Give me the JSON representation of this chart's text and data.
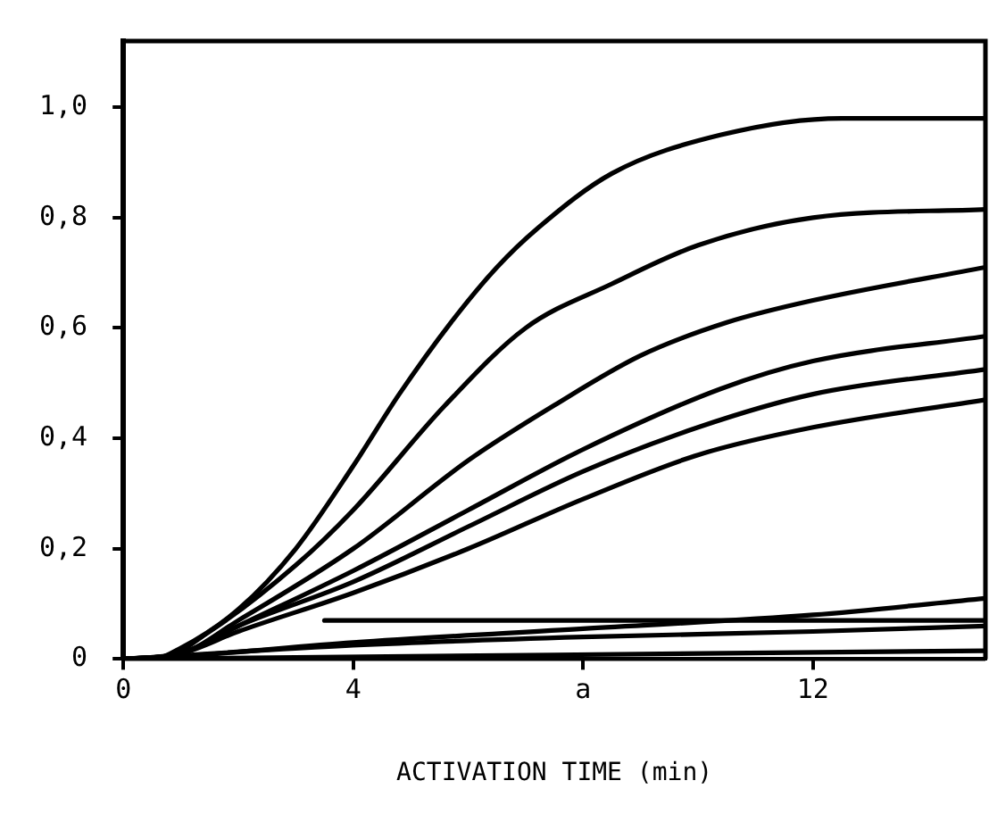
{
  "chart_data": {
    "type": "line",
    "xlabel": "ACTIVATION TIME (min)",
    "xlim": [
      0,
      15
    ],
    "ylim": [
      0,
      1.12
    ],
    "xticks": [
      0,
      4,
      {
        "value": 8,
        "label": "a"
      },
      12
    ],
    "yticks": [
      0,
      {
        "value": 0.2,
        "label": "0,2"
      },
      {
        "value": 0.4,
        "label": "0,4"
      },
      {
        "value": 0.6,
        "label": "0,6"
      },
      {
        "value": 0.8,
        "label": "0,8"
      },
      {
        "value": 1,
        "label": "1,0"
      }
    ],
    "grid": false,
    "legend": false,
    "marker": "none",
    "line_style": "solid",
    "series": [
      {
        "color": "#000000",
        "x": [
          0,
          0.5,
          1,
          2,
          3,
          4,
          4.8,
          5.7,
          6.5,
          7.2,
          8.5,
          10.4,
          12.5,
          15
        ],
        "values": [
          0,
          0,
          0.02,
          0.09,
          0.2,
          0.35,
          0.48,
          0.61,
          0.71,
          0.78,
          0.88,
          0.95,
          0.98,
          0.98
        ]
      },
      {
        "color": "#000000",
        "x": [
          0,
          0.6,
          1.5,
          3,
          4,
          5.6,
          7,
          8.5,
          10,
          12,
          15
        ],
        "values": [
          0,
          0,
          0.05,
          0.17,
          0.27,
          0.46,
          0.6,
          0.68,
          0.75,
          0.8,
          0.815
        ]
      },
      {
        "color": "#000000",
        "x": [
          0,
          1,
          2,
          4,
          6,
          7.5,
          9,
          10.5,
          12,
          15
        ],
        "values": [
          0,
          0.01,
          0.07,
          0.2,
          0.36,
          0.46,
          0.55,
          0.61,
          0.65,
          0.71
        ]
      },
      {
        "color": "#000000",
        "x": [
          0,
          1,
          2,
          4,
          6,
          8,
          10.4,
          12,
          15
        ],
        "values": [
          0,
          0.01,
          0.06,
          0.16,
          0.27,
          0.38,
          0.49,
          0.54,
          0.585
        ]
      },
      {
        "color": "#000000",
        "x": [
          0,
          1,
          2,
          4,
          6,
          8,
          10,
          12,
          15
        ],
        "values": [
          0,
          0.01,
          0.06,
          0.14,
          0.24,
          0.34,
          0.42,
          0.48,
          0.525
        ]
      },
      {
        "color": "#000000",
        "x": [
          0,
          1,
          2,
          4,
          6,
          8,
          10,
          12,
          15
        ],
        "values": [
          0,
          0.01,
          0.05,
          0.12,
          0.2,
          0.29,
          0.37,
          0.42,
          0.47
        ]
      },
      {
        "color": "#000000",
        "x": [
          0,
          1,
          4,
          8,
          12,
          15
        ],
        "values": [
          0,
          0.005,
          0.03,
          0.055,
          0.08,
          0.11
        ]
      },
      {
        "color": "#000000",
        "x": [
          3.5,
          15
        ],
        "values": [
          0.07,
          0.07
        ]
      },
      {
        "color": "#000000",
        "x": [
          0,
          4,
          8,
          12,
          15
        ],
        "values": [
          0,
          0.025,
          0.04,
          0.05,
          0.06
        ]
      },
      {
        "color": "#000000",
        "x": [
          0,
          15
        ],
        "values": [
          0,
          0.015
        ]
      }
    ]
  }
}
